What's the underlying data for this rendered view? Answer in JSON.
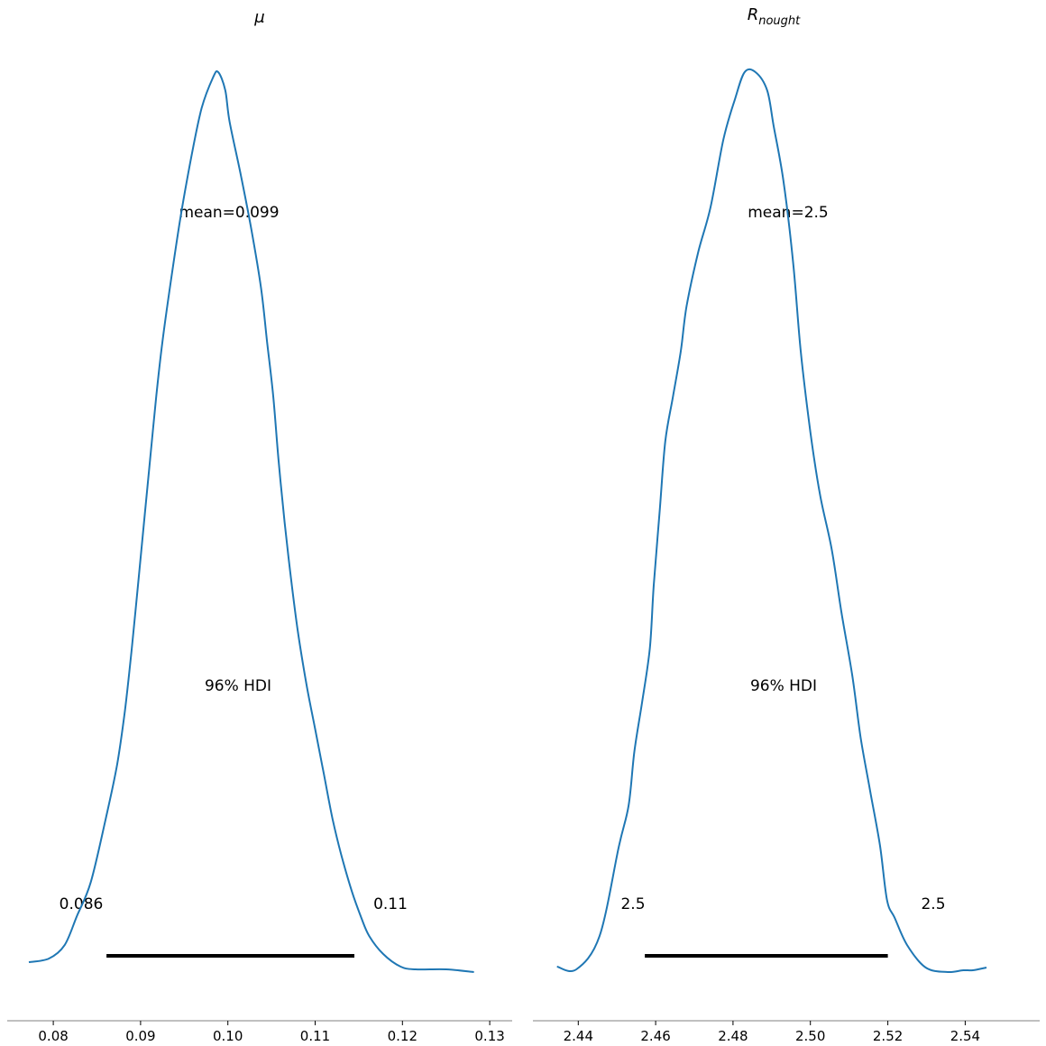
{
  "chart_data": [
    {
      "type": "line",
      "title": "μ",
      "xlabel": "",
      "ylabel": "",
      "xlim": [
        0.0772,
        0.1302
      ],
      "xticks": [
        "0.08",
        "0.09",
        "0.10",
        "0.11",
        "0.12",
        "0.13"
      ],
      "xtick_values": [
        0.08,
        0.09,
        0.1,
        0.11,
        0.12,
        0.13
      ],
      "y_axis_visible": false,
      "density": {
        "x": [
          0.0772,
          0.0795,
          0.0813,
          0.0827,
          0.0843,
          0.086,
          0.0873,
          0.0882,
          0.089,
          0.0898,
          0.0905,
          0.0911,
          0.0918,
          0.0925,
          0.0935,
          0.0946,
          0.0958,
          0.097,
          0.0983,
          0.0989,
          0.0997,
          0.1002,
          0.1015,
          0.1027,
          0.1038,
          0.1045,
          0.1052,
          0.1058,
          0.1065,
          0.1072,
          0.108,
          0.109,
          0.11,
          0.111,
          0.112,
          0.113,
          0.1142,
          0.1153,
          0.1162,
          0.1178,
          0.1198,
          0.1215,
          0.125,
          0.1282
        ],
        "y": [
          0.011,
          0.015,
          0.03,
          0.062,
          0.1,
          0.17,
          0.23,
          0.29,
          0.36,
          0.44,
          0.51,
          0.57,
          0.64,
          0.7,
          0.77,
          0.84,
          0.905,
          0.96,
          0.994,
          1.0,
          0.98,
          0.945,
          0.885,
          0.825,
          0.76,
          0.7,
          0.64,
          0.57,
          0.5,
          0.44,
          0.38,
          0.32,
          0.27,
          0.22,
          0.17,
          0.13,
          0.09,
          0.06,
          0.04,
          0.02,
          0.006,
          0.003,
          0.003,
          0.0
        ]
      },
      "annotations": {
        "mean": "mean=0.099",
        "hdi_label": "96% HDI",
        "hdi_low_label": "0.086",
        "hdi_high_label": "0.11"
      },
      "hdi": [
        0.0861,
        0.1145
      ]
    },
    {
      "type": "line",
      "title": "R",
      "title_subscript": "nought",
      "xlabel": "",
      "ylabel": "",
      "xlim": [
        2.4341,
        2.5539
      ],
      "xticks": [
        "2.44",
        "2.46",
        "2.48",
        "2.50",
        "2.52",
        "2.54"
      ],
      "xtick_values": [
        2.44,
        2.46,
        2.48,
        2.5,
        2.52,
        2.54
      ],
      "y_axis_visible": false,
      "density": {
        "x": [
          2.4345,
          2.4395,
          2.4455,
          2.4505,
          2.453,
          2.4545,
          2.4565,
          2.4585,
          2.4595,
          2.461,
          2.4625,
          2.4645,
          2.4665,
          2.468,
          2.471,
          2.4742,
          2.4775,
          2.4805,
          2.483,
          2.4858,
          2.4888,
          2.4905,
          2.493,
          2.4955,
          2.4975,
          2.5,
          2.5025,
          2.5055,
          2.508,
          2.5108,
          2.513,
          2.5155,
          2.518,
          2.5198,
          2.5218,
          2.525,
          2.5298,
          2.5355,
          2.5395,
          2.542,
          2.5455
        ],
        "y": [
          0.006,
          0.003,
          0.04,
          0.14,
          0.185,
          0.245,
          0.3,
          0.36,
          0.43,
          0.51,
          0.59,
          0.64,
          0.69,
          0.74,
          0.8,
          0.85,
          0.925,
          0.97,
          1.0,
          1.0,
          0.98,
          0.94,
          0.88,
          0.79,
          0.69,
          0.6,
          0.53,
          0.47,
          0.4,
          0.33,
          0.26,
          0.2,
          0.14,
          0.08,
          0.06,
          0.03,
          0.005,
          0.0,
          0.002,
          0.002,
          0.005
        ]
      },
      "annotations": {
        "mean": "mean=2.5",
        "hdi_label": "96% HDI",
        "hdi_low_label": "2.5",
        "hdi_high_label": "2.5"
      },
      "hdi": [
        2.4572,
        2.52
      ]
    }
  ],
  "colors": {
    "kde_line": "#1f77b4",
    "hdi_bar": "#000000",
    "axis": "#808080"
  }
}
